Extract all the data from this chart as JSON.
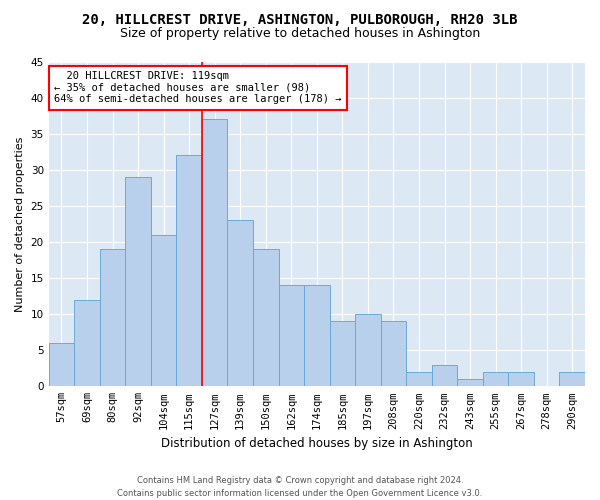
{
  "title": "20, HILLCREST DRIVE, ASHINGTON, PULBOROUGH, RH20 3LB",
  "subtitle": "Size of property relative to detached houses in Ashington",
  "xlabel": "Distribution of detached houses by size in Ashington",
  "ylabel": "Number of detached properties",
  "bar_labels": [
    "57sqm",
    "69sqm",
    "80sqm",
    "92sqm",
    "104sqm",
    "115sqm",
    "127sqm",
    "139sqm",
    "150sqm",
    "162sqm",
    "174sqm",
    "185sqm",
    "197sqm",
    "208sqm",
    "220sqm",
    "232sqm",
    "243sqm",
    "255sqm",
    "267sqm",
    "278sqm",
    "290sqm"
  ],
  "bar_heights": [
    6,
    12,
    19,
    29,
    21,
    32,
    37,
    23,
    19,
    14,
    14,
    9,
    10,
    9,
    2,
    3,
    1,
    2,
    2,
    0,
    2
  ],
  "bar_color": "#b8d0ec",
  "bar_edge_color": "#6aaad4",
  "ylim": [
    0,
    45
  ],
  "yticks": [
    0,
    5,
    10,
    15,
    20,
    25,
    30,
    35,
    40,
    45
  ],
  "annotation_line1": "20 HILLCREST DRIVE: 119sqm",
  "annotation_line2": "← 35% of detached houses are smaller (98)",
  "annotation_line3": "64% of semi-detached houses are larger (178) →",
  "footer_line1": "Contains HM Land Registry data © Crown copyright and database right 2024.",
  "footer_line2": "Contains public sector information licensed under the Open Government Licence v3.0.",
  "background_color": "#dce9f5",
  "grid_color": "#ffffff",
  "title_fontsize": 10,
  "subtitle_fontsize": 9,
  "ylabel_fontsize": 8,
  "xlabel_fontsize": 8.5,
  "tick_fontsize": 7.5,
  "annotation_fontsize": 7.5,
  "footer_fontsize": 6
}
